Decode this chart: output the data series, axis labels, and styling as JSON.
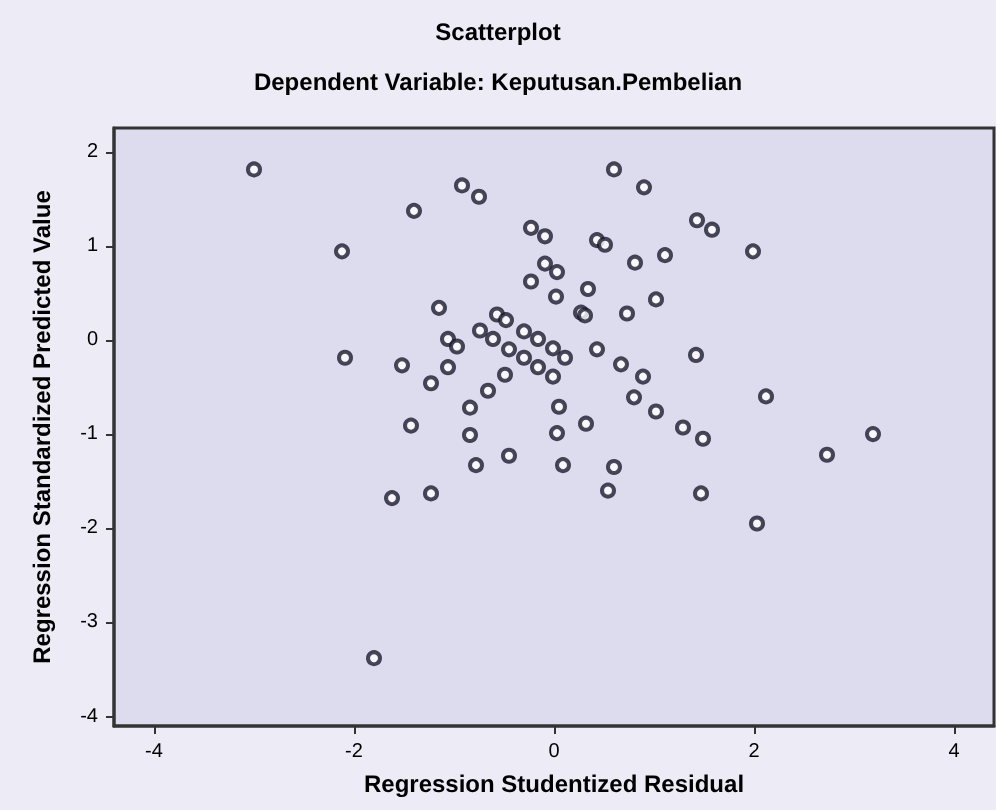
{
  "chart_data": {
    "type": "scatter",
    "title": "Scatterplot",
    "subtitle": "Dependent Variable: Keputusan.Pembelian",
    "xlabel": "Regression Studentized Residual",
    "ylabel": "Regression Standardized Predicted Value",
    "x": [
      -3.0,
      -0.92,
      -0.75,
      -1.4,
      -0.23,
      -0.09,
      -2.12,
      -0.09,
      0.03,
      -0.23,
      0.02,
      -1.15,
      -0.57,
      -0.48,
      -0.74,
      -0.3,
      -0.16,
      -0.01,
      -1.06,
      -0.97,
      -0.61,
      -0.45,
      -2.09,
      -1.52,
      -1.06,
      -0.3,
      -0.16,
      -0.01,
      -0.49,
      -1.23,
      -0.66,
      -0.84,
      0.05,
      -1.43,
      -0.84,
      0.03,
      -0.45,
      0.6,
      0.9,
      1.43,
      1.58,
      1.99,
      0.43,
      0.51,
      0.81,
      1.11,
      0.34,
      0.27,
      0.31,
      0.73,
      1.02,
      0.11,
      0.43,
      0.67,
      0.89,
      1.42,
      0.8,
      1.02,
      2.12,
      0.32,
      1.29,
      1.49,
      2.73,
      3.19,
      -0.78,
      -1.62,
      -1.23,
      -1.8,
      0.09,
      0.6,
      0.54,
      1.47,
      2.03
    ],
    "series": [
      {
        "color": "#1a1a2e",
        "values": [
          1.81,
          1.64,
          1.52,
          1.37,
          1.19,
          1.1,
          0.94,
          0.81,
          0.72,
          0.62,
          0.46,
          0.34,
          0.27,
          0.21,
          0.1,
          0.09,
          0.01,
          -0.09,
          0.01,
          -0.07,
          0.01,
          -0.1,
          -0.19,
          -0.27,
          -0.29,
          -0.19,
          -0.29,
          -0.39,
          -0.37,
          -0.46,
          -0.54,
          -0.72,
          -0.71,
          -0.91,
          -1.01,
          -0.99,
          -1.23,
          1.81,
          1.62,
          1.27,
          1.17,
          0.94,
          1.06,
          1.01,
          0.82,
          0.9,
          0.54,
          0.29,
          0.26,
          0.28,
          0.43,
          -0.19,
          -0.1,
          -0.26,
          -0.39,
          -0.16,
          -0.61,
          -0.76,
          -0.6,
          -0.89,
          -0.93,
          -1.05,
          -1.22,
          -1.0,
          -1.33,
          -1.68,
          -1.63,
          -3.38,
          -1.33,
          -1.35,
          -1.6,
          -1.63,
          -1.95
        ]
      }
    ],
    "xlim": [
      -4.4,
      4.4
    ],
    "ylim": [
      -4.1,
      2.25
    ],
    "xticks": [
      -4,
      -2,
      0,
      2,
      4
    ],
    "yticks": [
      -4,
      -3,
      -2,
      -1,
      0,
      1,
      2
    ],
    "grid": false,
    "marker": "circle"
  }
}
